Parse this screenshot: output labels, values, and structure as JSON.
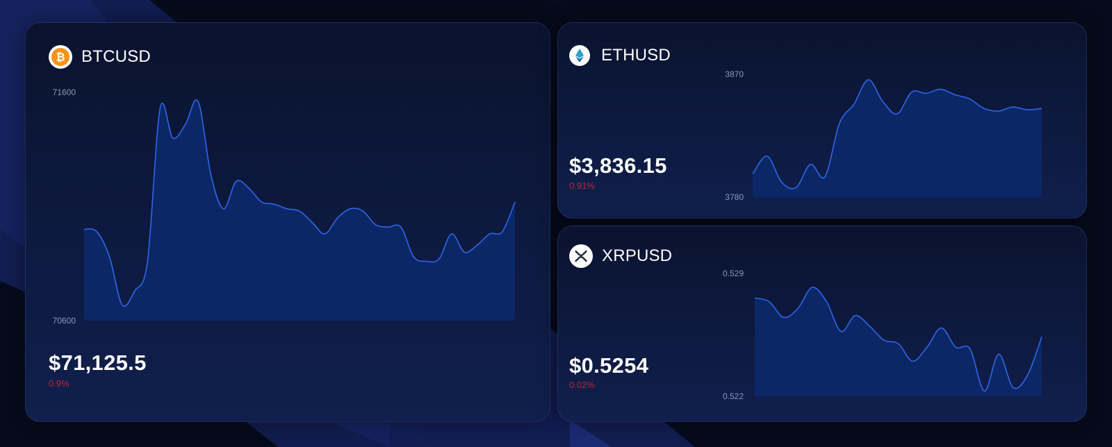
{
  "colors": {
    "page_background": "#060b1c",
    "card_background": "#0a132f",
    "line": "#2f66e8",
    "area": "#0d2868",
    "negative_change": "#c0253a",
    "btc_icon": "#f7931a",
    "eth_icon": "#2a9fd0",
    "xrp_icon": "#23292f"
  },
  "cards": {
    "btc": {
      "symbol": "BTCUSD",
      "icon": "bitcoin-icon",
      "price": "$71,125.5",
      "change": "0.9%"
    },
    "eth": {
      "symbol": "ETHUSD",
      "icon": "ethereum-icon",
      "price": "$3,836.15",
      "change": "0.91%"
    },
    "xrp": {
      "symbol": "XRPUSD",
      "icon": "xrp-icon",
      "price": "$0.5254",
      "change": "0.02%"
    }
  },
  "chart_data": [
    {
      "type": "area",
      "series": [
        {
          "values": [
            71000,
            70990,
            70880,
            70670,
            70730,
            70860,
            71530,
            71400,
            71460,
            71560,
            71240,
            71090,
            71210,
            71180,
            71120,
            71110,
            71090,
            71080,
            71030,
            70980,
            71050,
            71090,
            71080,
            71020,
            71010,
            71010,
            70880,
            70860,
            70870,
            70980,
            70900,
            70930,
            70980,
            70990,
            71120
          ]
        }
      ],
      "y_ticks": [
        "71600",
        "70600"
      ],
      "ylim": [
        70600,
        71600
      ]
    },
    {
      "type": "area",
      "series": [
        {
          "values": [
            3797,
            3810,
            3791,
            3787,
            3804,
            3795,
            3834,
            3848,
            3866,
            3850,
            3841,
            3857,
            3856,
            3859,
            3855,
            3852,
            3845,
            3843,
            3846,
            3844,
            3845
          ]
        }
      ],
      "y_ticks": [
        "3870",
        "3780"
      ],
      "ylim": [
        3780,
        3870
      ]
    },
    {
      "type": "area",
      "series": [
        {
          "values": [
            0.5276,
            0.5274,
            0.5265,
            0.527,
            0.5282,
            0.5274,
            0.5257,
            0.5266,
            0.526,
            0.5252,
            0.525,
            0.524,
            0.5248,
            0.5259,
            0.5248,
            0.5247,
            0.5223,
            0.5244,
            0.5225,
            0.5232,
            0.5254
          ]
        }
      ],
      "y_ticks": [
        "0.529",
        "0.522"
      ],
      "ylim": [
        0.522,
        0.529
      ]
    }
  ]
}
